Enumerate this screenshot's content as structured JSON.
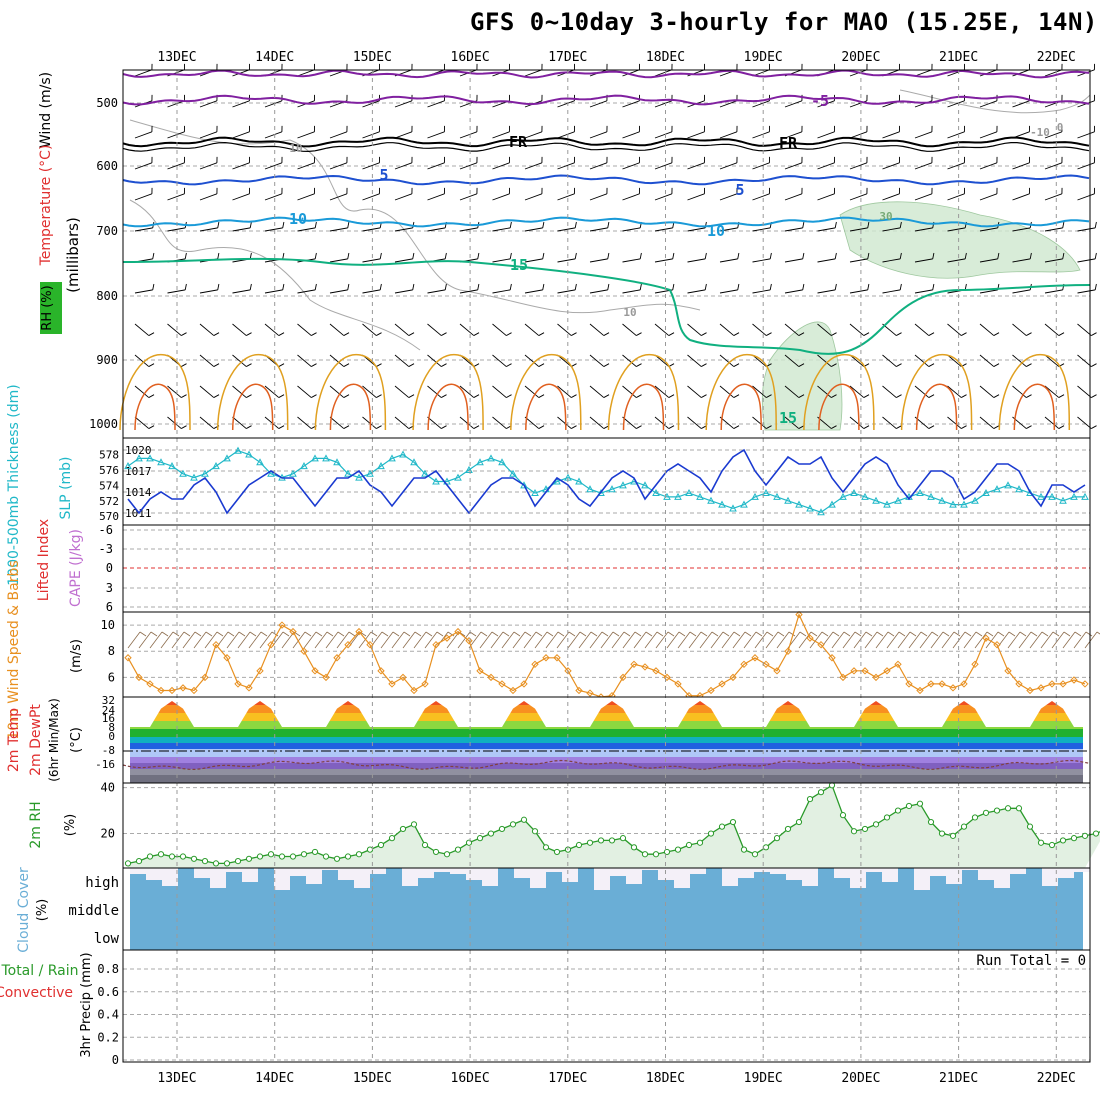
{
  "title": "GFS 0~10day 3-hourly for MAO (15.25E, 14N)",
  "dates": [
    "13DEC",
    "14DEC",
    "15DEC",
    "16DEC",
    "17DEC",
    "18DEC",
    "19DEC",
    "20DEC",
    "21DEC",
    "22DEC"
  ],
  "colors": {
    "temp": "#e03030",
    "wind": "#000000",
    "purple": "#8020a0",
    "blue": "#1e50d0",
    "cyan": "#1a9ad8",
    "green": "#10b080",
    "rh": "#2a9a2a",
    "slp": "#1a3ad0",
    "thick": "#20b8c8",
    "cape": "#c070d0",
    "li": "#e03030",
    "wind10": "#e89020",
    "cloud": "#6aaed6"
  },
  "panel1": {
    "ylabel_wind": "Wind (m/s)",
    "ylabel_temp": "Temperature (°C)",
    "ylabel_mb": "(millibars)",
    "ylabel_rh": "RH (%)",
    "y_ticks": [
      "500",
      "600",
      "700",
      "800",
      "900",
      "1000"
    ],
    "contour_labels": [
      "-5",
      "FR",
      "FR",
      "5",
      "5",
      "10",
      "10",
      "15",
      "-10",
      "0",
      "10",
      "30",
      "10",
      "15"
    ]
  },
  "panel2": {
    "label_thick": "1000-500mb Thickness (dm)",
    "label_slp": "SLP (mb)",
    "left_ticks": [
      "578",
      "576",
      "574",
      "572",
      "570"
    ],
    "right_ticks": [
      "1020",
      "1017",
      "1014",
      "1011"
    ]
  },
  "panel3": {
    "label_li": "Lifted Index",
    "label_cape": "CAPE (J/kg)",
    "ticks": [
      "-6",
      "-3",
      "0",
      "3",
      "6"
    ]
  },
  "panel4": {
    "label": "10m Wind Speed & Barbs",
    "units": "(m/s)",
    "ticks": [
      "10",
      "8",
      "6"
    ]
  },
  "panel5": {
    "label": "2m Temp 2m DewPt (6hr Min/Max)",
    "units": "(°C)",
    "ticks": [
      "32",
      "24",
      "16",
      "8",
      "0",
      "-8",
      "-16"
    ]
  },
  "panel6": {
    "label": "2m RH",
    "units": "(%)",
    "ticks": [
      "40",
      "20"
    ]
  },
  "panel7": {
    "label": "Cloud Cover",
    "units": "(%)",
    "ticks": [
      "high",
      "middle",
      "low"
    ]
  },
  "panel8": {
    "label_total": "Total / Rain",
    "label_conv": "Convective",
    "label": "3hr Precip (mm)",
    "ticks": [
      "0.8",
      "0.6",
      "0.4",
      "0.2",
      "0"
    ],
    "run_total": "Run Total = 0"
  },
  "chart_data": [
    {
      "type": "line",
      "title": "1000-500mb Thickness (dm) and SLP (mb)",
      "xlabel": "",
      "ylabel": "SLP (mb)",
      "ylim": [
        1010,
        1021
      ],
      "y2lim": [
        569.5,
        579.5
      ],
      "series": [
        {
          "name": "SLP (mb)",
          "axis": "right",
          "values": [
            1013,
            1011,
            1013,
            1014,
            1013,
            1013,
            1015,
            1016,
            1014,
            1011,
            1013,
            1015,
            1016,
            1017,
            1016,
            1016,
            1014,
            1012,
            1014,
            1016,
            1016,
            1017,
            1015,
            1014,
            1012,
            1014,
            1016,
            1016,
            1017,
            1015,
            1013,
            1011,
            1013,
            1015,
            1016,
            1016,
            1015,
            1012,
            1014,
            1016,
            1015,
            1013,
            1012,
            1014,
            1016,
            1017,
            1016,
            1013,
            1015,
            1017,
            1018,
            1017,
            1016,
            1014,
            1017,
            1019,
            1020,
            1017,
            1015,
            1017,
            1019,
            1018,
            1018,
            1019,
            1016,
            1014,
            1016,
            1018,
            1019,
            1018,
            1015,
            1013,
            1015,
            1017,
            1017,
            1016,
            1013,
            1014,
            1016,
            1018,
            1018,
            1017,
            1014,
            1012,
            1015,
            1015,
            1014,
            1015
          ]
        },
        {
          "name": "1000-500mb Thickness (dm)",
          "axis": "left",
          "values": [
            576.5,
            577.5,
            577.5,
            577,
            576.5,
            575.5,
            575,
            575.5,
            576.5,
            577.5,
            578.5,
            578,
            577,
            575.5,
            575,
            575.5,
            576.5,
            577.5,
            577.5,
            577,
            575.5,
            575,
            575.5,
            576.5,
            577.5,
            578,
            577,
            575.5,
            574.5,
            574.5,
            575,
            576,
            577,
            577.5,
            577,
            575.5,
            574,
            573,
            573.5,
            574.5,
            575,
            574.5,
            573.5,
            573,
            573.5,
            574,
            574.5,
            574,
            573,
            572.5,
            572.5,
            573,
            572.5,
            572,
            571.5,
            571,
            571.5,
            572.5,
            573,
            572.5,
            572,
            571.5,
            571,
            570.5,
            571.5,
            572.5,
            573,
            572.5,
            572,
            571.5,
            572,
            572.5,
            573,
            572.5,
            572,
            571.5,
            571.5,
            572,
            573,
            573.5,
            574,
            573.5,
            573,
            572.5,
            572.5,
            572,
            572.5,
            572.5
          ]
        }
      ]
    },
    {
      "type": "line",
      "title": "10m Wind Speed",
      "xlabel": "",
      "ylabel": "(m/s)",
      "ylim": [
        4.5,
        11
      ],
      "series": [
        {
          "name": "10m Wind Speed",
          "values": [
            7.5,
            6,
            5.5,
            5,
            5,
            5.2,
            5,
            6,
            8.5,
            7.5,
            5.5,
            5.2,
            6.5,
            8.5,
            10,
            9.5,
            8,
            6.5,
            6,
            7.5,
            8.5,
            9.5,
            8.5,
            6.5,
            5.5,
            6,
            5,
            5.5,
            8.5,
            9,
            9.5,
            8.8,
            6.5,
            6,
            5.5,
            5,
            5.5,
            7,
            7.5,
            7.5,
            6.5,
            5,
            4.8,
            4.5,
            4.6,
            6,
            7,
            6.8,
            6.5,
            6,
            5.5,
            4.6,
            4.6,
            5,
            5.5,
            6,
            7,
            7.5,
            7,
            6.5,
            8,
            10.8,
            9,
            8.5,
            7.5,
            6,
            6.5,
            6.5,
            6,
            6.5,
            7,
            5.5,
            5,
            5.5,
            5.5,
            5.2,
            5.5,
            7,
            9,
            8.5,
            6.5,
            5.5,
            5,
            5.2,
            5.5,
            5.5,
            5.8,
            5.5
          ]
        }
      ]
    },
    {
      "type": "area",
      "title": "2m RH",
      "xlabel": "",
      "ylabel": "(%)",
      "ylim": [
        5,
        42
      ],
      "series": [
        {
          "name": "2m RH (%)",
          "values": [
            7,
            8,
            10,
            11,
            10,
            10,
            9,
            8,
            7,
            7,
            8,
            9,
            10,
            11,
            10,
            10,
            11,
            12,
            10,
            9,
            10,
            11,
            13,
            15,
            18,
            22,
            24,
            15,
            12,
            11,
            13,
            16,
            18,
            20,
            22,
            24,
            26,
            21,
            14,
            12,
            13,
            15,
            16,
            17,
            17,
            18,
            14,
            11,
            11,
            12,
            13,
            15,
            16,
            20,
            23,
            25,
            13,
            11,
            14,
            18,
            22,
            25,
            35,
            38,
            41,
            28,
            21,
            22,
            24,
            27,
            30,
            32,
            33,
            25,
            20,
            19,
            23,
            27,
            29,
            30,
            31,
            31,
            23,
            16,
            15,
            17,
            18,
            19,
            20,
            22
          ]
        }
      ]
    },
    {
      "type": "bar",
      "title": "3hr Precip",
      "xlabel": "",
      "ylabel": "3hr Precip (mm)",
      "ylim": [
        0,
        0.95
      ],
      "series": [
        {
          "name": "Total / Rain",
          "values": [
            0,
            0,
            0,
            0,
            0,
            0,
            0,
            0,
            0,
            0
          ]
        },
        {
          "name": "Convective",
          "values": [
            0,
            0,
            0,
            0,
            0,
            0,
            0,
            0,
            0,
            0
          ]
        }
      ]
    }
  ]
}
